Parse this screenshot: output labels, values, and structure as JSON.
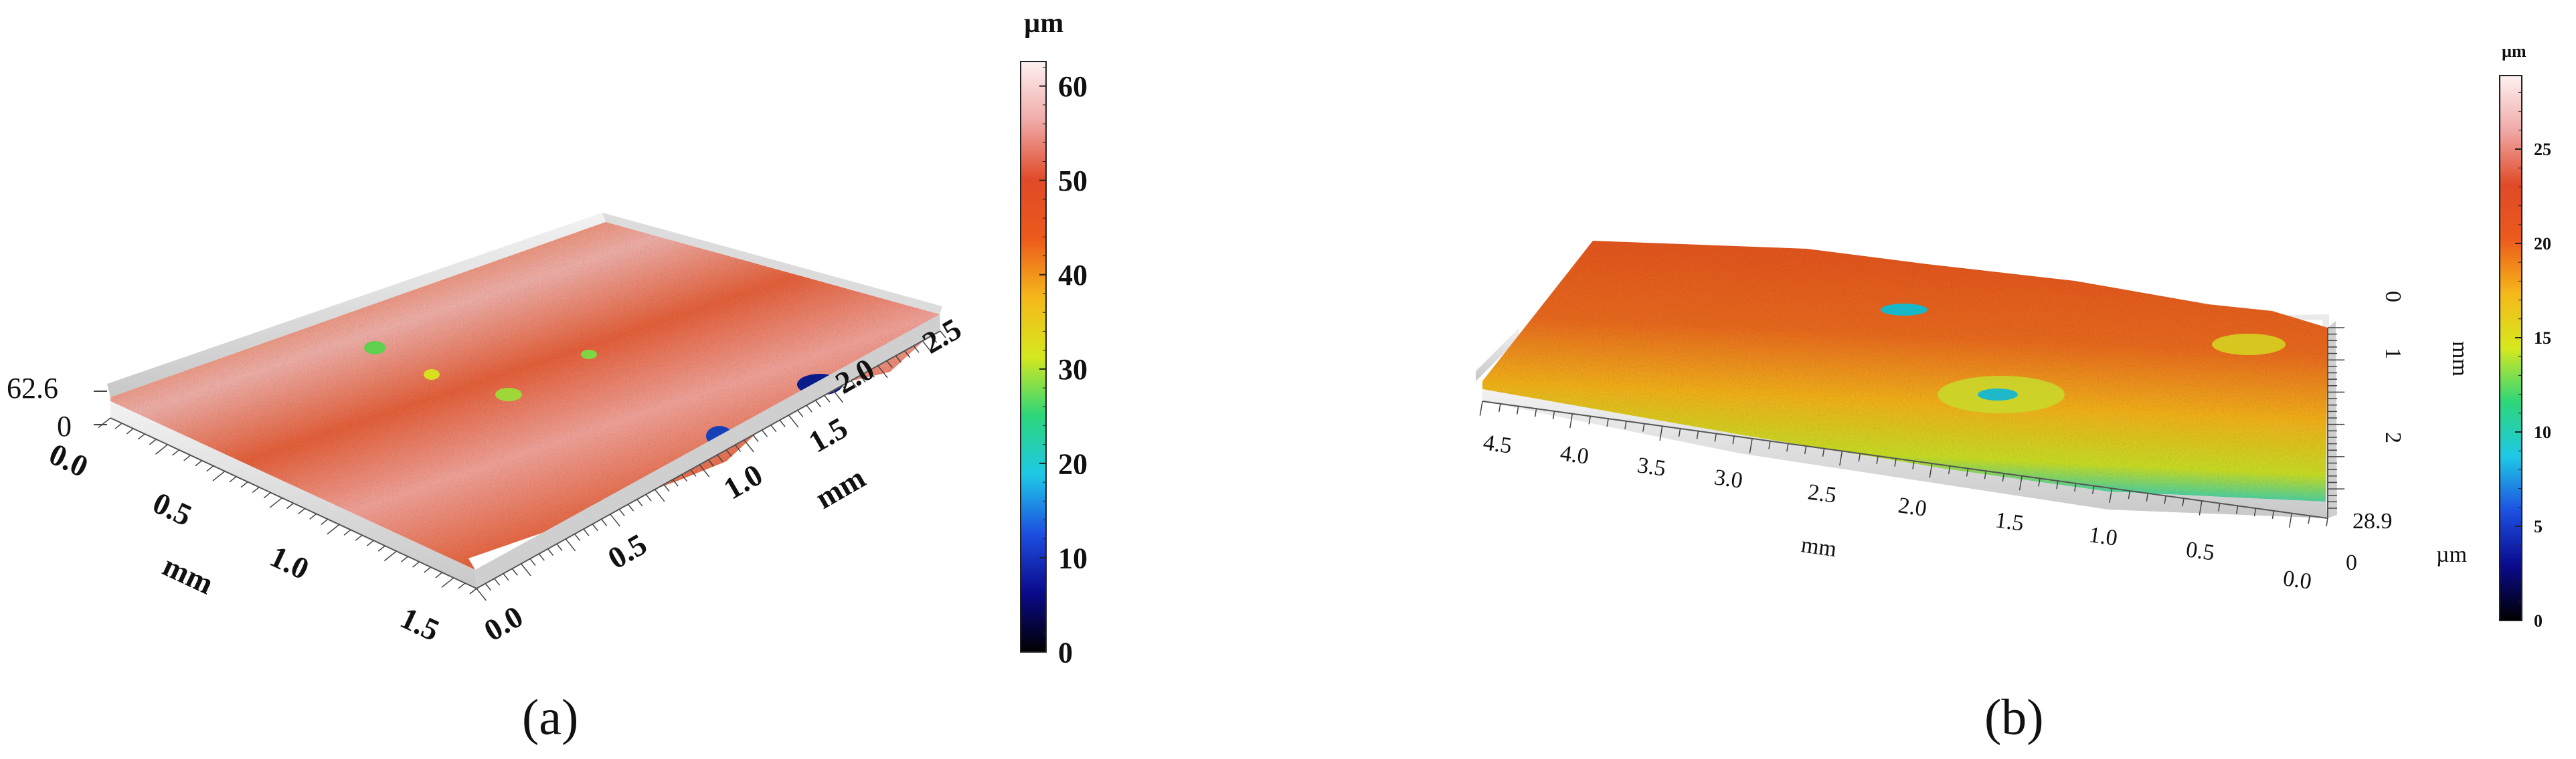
{
  "panels": [
    {
      "id": "a",
      "caption": "(a)",
      "chart_data": {
        "type": "surface-3d",
        "x_axis": {
          "label": "mm",
          "ticks": [
            "0.0",
            "0.5",
            "1.0",
            "1.5"
          ],
          "range": [
            0.0,
            1.6
          ]
        },
        "y_axis": {
          "label": "mm",
          "ticks": [
            "0.0",
            "0.5",
            "1.0",
            "1.5",
            "2.0",
            "2.5"
          ],
          "range": [
            0.0,
            2.6
          ]
        },
        "z_axis": {
          "ticks": [
            "62.6",
            "0"
          ],
          "range": [
            0,
            62.6
          ]
        },
        "colorbar": {
          "unit": "µm",
          "ticks": [
            "0",
            "10",
            "20",
            "30",
            "40",
            "50",
            "60"
          ],
          "range": [
            0,
            62.6
          ]
        },
        "grid": false
      }
    },
    {
      "id": "b",
      "caption": "(b)",
      "chart_data": {
        "type": "surface-3d",
        "x_axis": {
          "label": "mm",
          "ticks": [
            "4.5",
            "4.0",
            "3.5",
            "3.0",
            "2.5",
            "2.0",
            "1.5",
            "1.0",
            "0.5",
            "0.0"
          ],
          "range": [
            0.0,
            4.7
          ]
        },
        "y_axis": {
          "label": "mm",
          "ticks": [
            "0",
            "1",
            "2"
          ],
          "range": [
            0,
            2.8
          ]
        },
        "z_axis": {
          "label": "µm",
          "ticks": [
            "28.9",
            "0"
          ],
          "range": [
            0,
            28.9
          ]
        },
        "colorbar": {
          "unit": "µm",
          "ticks": [
            "0",
            "5",
            "10",
            "15",
            "20",
            "25"
          ],
          "range": [
            0,
            28.9
          ]
        },
        "grid": false
      }
    }
  ],
  "colors": {
    "colormap": [
      "#000000",
      "#0a0a8c",
      "#1d4fe0",
      "#1ec8e6",
      "#2cd67a",
      "#d6e81e",
      "#f5b81a",
      "#ec5a1c",
      "#e04a28",
      "#f0aaa8",
      "#fdf1f1"
    ]
  }
}
